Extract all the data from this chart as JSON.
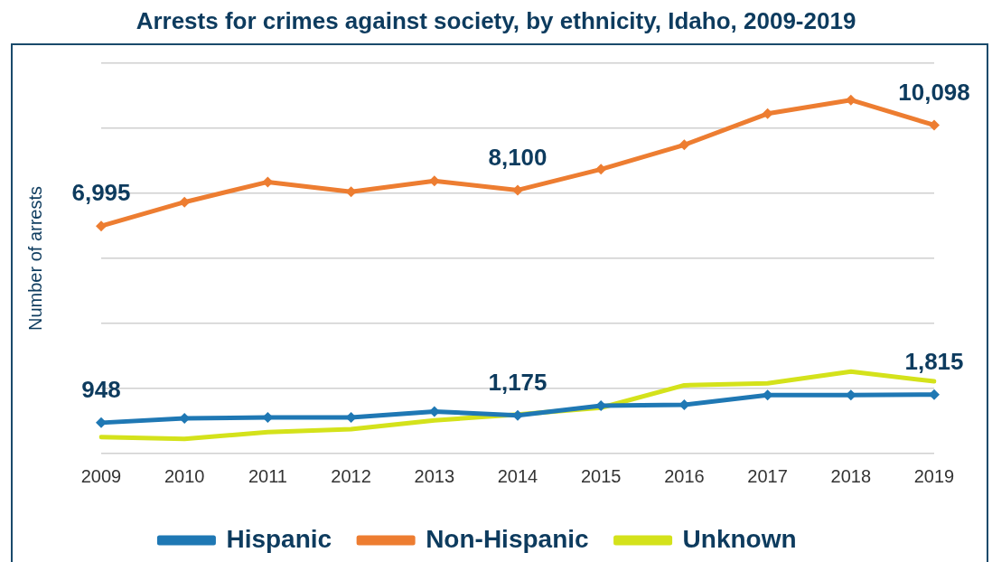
{
  "chart_data": {
    "type": "line",
    "title": "Arrests for crimes against society, by ethnicity, Idaho, 2009-2019",
    "ylabel": "Number of arrests",
    "categories": [
      "2009",
      "2010",
      "2011",
      "2012",
      "2013",
      "2014",
      "2015",
      "2016",
      "2017",
      "2018",
      "2019"
    ],
    "series": [
      {
        "name": "Hispanic",
        "color": "#1f78b4",
        "values": [
          948,
          1080,
          1110,
          1110,
          1290,
          1175,
          1470,
          1500,
          1800,
          1800,
          1815
        ],
        "value_labels": [
          "948",
          null,
          null,
          null,
          null,
          "1,175",
          null,
          null,
          null,
          null,
          "1,815"
        ]
      },
      {
        "name": "Non-Hispanic",
        "color": "#ed7d31",
        "values": [
          6995,
          7730,
          8350,
          8050,
          8380,
          8100,
          8740,
          9490,
          10450,
          10870,
          10098
        ],
        "value_labels": [
          "6,995",
          null,
          null,
          null,
          null,
          "8,100",
          null,
          null,
          null,
          null,
          "10,098"
        ]
      },
      {
        "name": "Unknown",
        "color": "#d4e21b",
        "marker": "none",
        "values": [
          510,
          450,
          660,
          750,
          1020,
          1200,
          1410,
          2100,
          2160,
          2520,
          2220
        ]
      }
    ],
    "ylim": [
      0,
      12000
    ],
    "yticks": [
      {
        "value": 0,
        "label": null
      },
      {
        "value": 2000,
        "label": null
      },
      {
        "value": 4000,
        "label": null
      },
      {
        "value": 6000,
        "label": null
      },
      {
        "value": 8000,
        "label": null
      },
      {
        "value": 10000,
        "label": null
      },
      {
        "value": 12000,
        "label": null
      }
    ],
    "grid": "y",
    "tick_labels": "x",
    "legend": "bottom",
    "marker": "diamond",
    "line_style": "solid"
  }
}
